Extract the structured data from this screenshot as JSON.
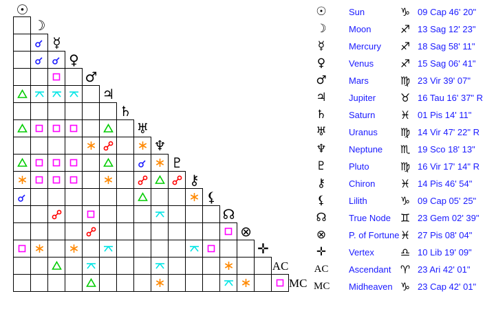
{
  "planets": [
    {
      "name": "Sun",
      "glyph": "☉",
      "sign_glyph": "♑",
      "position": "09 Cap 46' 20\""
    },
    {
      "name": "Moon",
      "glyph": "☽",
      "sign_glyph": "♐",
      "position": "13 Sag 12' 23\""
    },
    {
      "name": "Mercury",
      "glyph": "☿",
      "sign_glyph": "♐",
      "position": "18 Sag 58' 11\""
    },
    {
      "name": "Venus",
      "glyph": "♀",
      "sign_glyph": "♐",
      "position": "15 Sag 06' 41\""
    },
    {
      "name": "Mars",
      "glyph": "♂",
      "sign_glyph": "♍",
      "position": "23 Vir 39' 07\""
    },
    {
      "name": "Jupiter",
      "glyph": "♃",
      "sign_glyph": "♉",
      "position": "16 Tau 16' 37\" R"
    },
    {
      "name": "Saturn",
      "glyph": "♄",
      "sign_glyph": "♓",
      "position": "01 Pis 14' 11\""
    },
    {
      "name": "Uranus",
      "glyph": "♅",
      "sign_glyph": "♍",
      "position": "14 Vir 47' 22\" R"
    },
    {
      "name": "Neptune",
      "glyph": "♆",
      "sign_glyph": "♏",
      "position": "19 Sco 18' 13\""
    },
    {
      "name": "Pluto",
      "glyph": "♇",
      "sign_glyph": "♍",
      "position": "16 Vir 17' 14\" R"
    },
    {
      "name": "Chiron",
      "glyph": "⚷",
      "sign_glyph": "♓",
      "position": "14 Pis 46' 54\""
    },
    {
      "name": "Lilith",
      "glyph": "⚸",
      "sign_glyph": "♑",
      "position": "09 Cap 05' 25\""
    },
    {
      "name": "True Node",
      "glyph": "☊",
      "sign_glyph": "♊",
      "position": "23 Gem 02' 39\""
    },
    {
      "name": "P. of Fortune",
      "glyph": "⊗",
      "sign_glyph": "♓",
      "position": "27 Pis 08' 04\""
    },
    {
      "name": "Vertex",
      "glyph": "✛",
      "sign_glyph": "♎",
      "position": "10 Lib 19' 09\""
    },
    {
      "name": "Ascendant",
      "glyph": "AC",
      "sign_glyph": "♈",
      "position": "23 Ari 42' 01\""
    },
    {
      "name": "Midheaven",
      "glyph": "MC",
      "sign_glyph": "♑",
      "position": "23 Cap 42' 01\""
    }
  ],
  "aspect_colors": {
    "conjunction": "#1a1aff",
    "opposition": "#ff0000",
    "square": "#ff00ff",
    "trine": "#00cc00",
    "sextile": "#ff8800",
    "quincunx": "#00e5e5"
  },
  "aspects": [
    {
      "row": 2,
      "col": 1,
      "aspect": "conjunction"
    },
    {
      "row": 3,
      "col": 1,
      "aspect": "conjunction"
    },
    {
      "row": 3,
      "col": 2,
      "aspect": "conjunction"
    },
    {
      "row": 4,
      "col": 2,
      "aspect": "square"
    },
    {
      "row": 5,
      "col": 0,
      "aspect": "trine"
    },
    {
      "row": 5,
      "col": 1,
      "aspect": "quincunx"
    },
    {
      "row": 5,
      "col": 2,
      "aspect": "quincunx"
    },
    {
      "row": 5,
      "col": 3,
      "aspect": "quincunx"
    },
    {
      "row": 7,
      "col": 0,
      "aspect": "trine"
    },
    {
      "row": 7,
      "col": 1,
      "aspect": "square"
    },
    {
      "row": 7,
      "col": 2,
      "aspect": "square"
    },
    {
      "row": 7,
      "col": 3,
      "aspect": "square"
    },
    {
      "row": 7,
      "col": 5,
      "aspect": "trine"
    },
    {
      "row": 8,
      "col": 4,
      "aspect": "sextile"
    },
    {
      "row": 8,
      "col": 5,
      "aspect": "opposition"
    },
    {
      "row": 8,
      "col": 7,
      "aspect": "sextile"
    },
    {
      "row": 9,
      "col": 0,
      "aspect": "trine"
    },
    {
      "row": 9,
      "col": 1,
      "aspect": "square"
    },
    {
      "row": 9,
      "col": 2,
      "aspect": "square"
    },
    {
      "row": 9,
      "col": 3,
      "aspect": "square"
    },
    {
      "row": 9,
      "col": 5,
      "aspect": "trine"
    },
    {
      "row": 9,
      "col": 7,
      "aspect": "conjunction"
    },
    {
      "row": 9,
      "col": 8,
      "aspect": "sextile"
    },
    {
      "row": 10,
      "col": 0,
      "aspect": "sextile"
    },
    {
      "row": 10,
      "col": 1,
      "aspect": "square"
    },
    {
      "row": 10,
      "col": 2,
      "aspect": "square"
    },
    {
      "row": 10,
      "col": 3,
      "aspect": "square"
    },
    {
      "row": 10,
      "col": 5,
      "aspect": "sextile"
    },
    {
      "row": 10,
      "col": 7,
      "aspect": "opposition"
    },
    {
      "row": 10,
      "col": 8,
      "aspect": "trine"
    },
    {
      "row": 10,
      "col": 9,
      "aspect": "opposition"
    },
    {
      "row": 11,
      "col": 0,
      "aspect": "conjunction"
    },
    {
      "row": 11,
      "col": 7,
      "aspect": "trine"
    },
    {
      "row": 11,
      "col": 10,
      "aspect": "sextile"
    },
    {
      "row": 12,
      "col": 2,
      "aspect": "opposition"
    },
    {
      "row": 12,
      "col": 4,
      "aspect": "square"
    },
    {
      "row": 12,
      "col": 8,
      "aspect": "quincunx"
    },
    {
      "row": 13,
      "col": 4,
      "aspect": "opposition"
    },
    {
      "row": 13,
      "col": 12,
      "aspect": "square"
    },
    {
      "row": 14,
      "col": 0,
      "aspect": "square"
    },
    {
      "row": 14,
      "col": 1,
      "aspect": "sextile"
    },
    {
      "row": 14,
      "col": 3,
      "aspect": "sextile"
    },
    {
      "row": 14,
      "col": 5,
      "aspect": "quincunx"
    },
    {
      "row": 14,
      "col": 10,
      "aspect": "quincunx"
    },
    {
      "row": 14,
      "col": 11,
      "aspect": "square"
    },
    {
      "row": 15,
      "col": 2,
      "aspect": "trine"
    },
    {
      "row": 15,
      "col": 4,
      "aspect": "quincunx"
    },
    {
      "row": 15,
      "col": 8,
      "aspect": "quincunx"
    },
    {
      "row": 15,
      "col": 12,
      "aspect": "sextile"
    },
    {
      "row": 16,
      "col": 4,
      "aspect": "trine"
    },
    {
      "row": 16,
      "col": 8,
      "aspect": "sextile"
    },
    {
      "row": 16,
      "col": 12,
      "aspect": "quincunx"
    },
    {
      "row": 16,
      "col": 13,
      "aspect": "sextile"
    },
    {
      "row": 16,
      "col": 15,
      "aspect": "square"
    }
  ]
}
